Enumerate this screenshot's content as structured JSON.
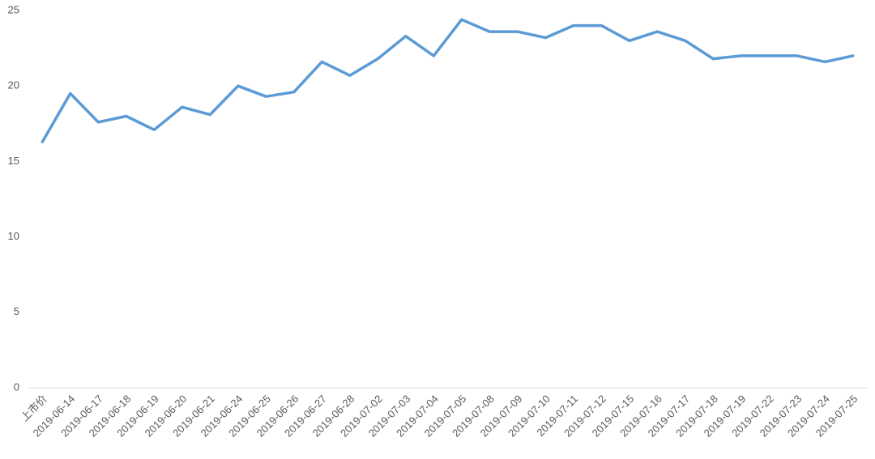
{
  "chart_data": {
    "type": "line",
    "categories": [
      "上市价",
      "2019-06-14",
      "2019-06-17",
      "2019-06-18",
      "2019-06-19",
      "2019-06-20",
      "2019-06-21",
      "2019-06-24",
      "2019-06-25",
      "2019-06-26",
      "2019-06-27",
      "2019-06-28",
      "2019-07-02",
      "2019-07-03",
      "2019-07-04",
      "2019-07-05",
      "2019-07-08",
      "2019-07-09",
      "2019-07-10",
      "2019-07-11",
      "2019-07-12",
      "2019-07-15",
      "2019-07-16",
      "2019-07-17",
      "2019-07-18",
      "2019-07-19",
      "2019-07-22",
      "2019-07-23",
      "2019-07-24",
      "2019-07-25"
    ],
    "values": [
      16.3,
      19.5,
      17.6,
      18.0,
      17.1,
      18.6,
      18.1,
      20.0,
      19.3,
      19.6,
      21.6,
      20.7,
      21.8,
      23.3,
      22.0,
      24.4,
      23.6,
      23.6,
      23.2,
      24.0,
      24.0,
      23.0,
      23.6,
      23.0,
      21.8,
      22.0,
      22.0,
      22.0,
      21.6,
      22.0
    ],
    "color": "#5b9bd5",
    "ylim": [
      0,
      25
    ],
    "yticks": [
      0,
      5,
      10,
      15,
      20,
      25
    ],
    "grid": false
  }
}
